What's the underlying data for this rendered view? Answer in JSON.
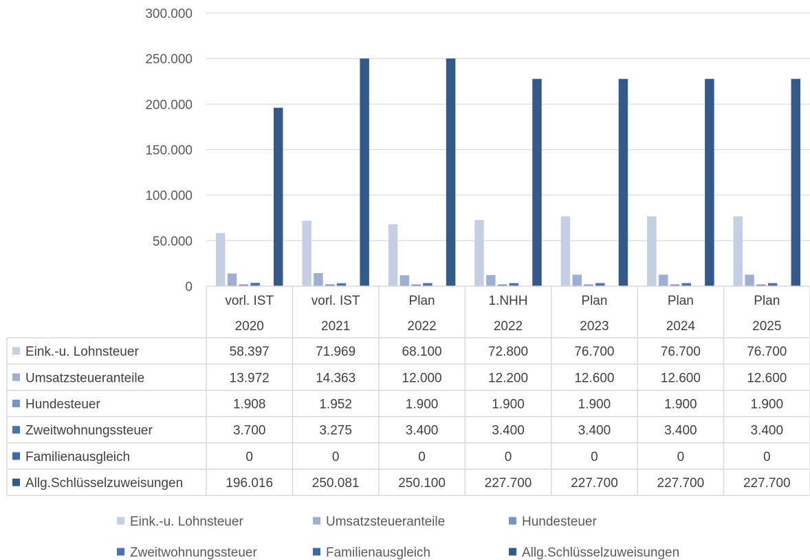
{
  "chart_data": {
    "type": "bar",
    "categories": [
      [
        "vorl. IST",
        "2020"
      ],
      [
        "vorl. IST",
        "2021"
      ],
      [
        "Plan",
        "2022"
      ],
      [
        "1.NHH",
        "2022"
      ],
      [
        "Plan",
        "2023"
      ],
      [
        "Plan",
        "2024"
      ],
      [
        "Plan",
        "2025"
      ]
    ],
    "series": [
      {
        "name": "Eink.-u. Lohnsteuer",
        "color": "#c5cfe3",
        "values": [
          58397,
          71969,
          68100,
          72800,
          76700,
          76700,
          76700
        ],
        "labels": [
          "58.397",
          "71.969",
          "68.100",
          "72.800",
          "76.700",
          "76.700",
          "76.700"
        ]
      },
      {
        "name": "Umsatzsteueranteile",
        "color": "#9eafd2",
        "values": [
          13972,
          14363,
          12000,
          12200,
          12600,
          12600,
          12600
        ],
        "labels": [
          "13.972",
          "14.363",
          "12.000",
          "12.200",
          "12.600",
          "12.600",
          "12.600"
        ]
      },
      {
        "name": "Hundesteuer",
        "color": "#7a93c5",
        "values": [
          1908,
          1952,
          1900,
          1900,
          1900,
          1900,
          1900
        ],
        "labels": [
          "1.908",
          "1.952",
          "1.900",
          "1.900",
          "1.900",
          "1.900",
          "1.900"
        ]
      },
      {
        "name": "Zweitwohnungssteuer",
        "color": "#4e72b0",
        "values": [
          3700,
          3275,
          3400,
          3400,
          3400,
          3400,
          3400
        ],
        "labels": [
          "3.700",
          "3.275",
          "3.400",
          "3.400",
          "3.400",
          "3.400",
          "3.400"
        ]
      },
      {
        "name": "Familienausgleich",
        "color": "#3e6aa3",
        "values": [
          0,
          0,
          0,
          0,
          0,
          0,
          0
        ],
        "labels": [
          "0",
          "0",
          "0",
          "0",
          "0",
          "0",
          "0"
        ]
      },
      {
        "name": "Allg.Schlüsselzuweisungen",
        "color": "#345a89",
        "values": [
          196016,
          250081,
          250100,
          227700,
          227700,
          227700,
          227700
        ],
        "labels": [
          "196.016",
          "250.081",
          "250.100",
          "227.700",
          "227.700",
          "227.700",
          "227.700"
        ]
      }
    ],
    "ylim": [
      0,
      300000
    ],
    "yticks": [
      0,
      50000,
      100000,
      150000,
      200000,
      250000,
      300000
    ],
    "ytick_labels": [
      "0",
      "50.000",
      "100.000",
      "150.000",
      "200.000",
      "250.000",
      "300.000"
    ],
    "grid": true,
    "legend_position": "bottom",
    "data_table": true,
    "title": "",
    "xlabel": "",
    "ylabel": ""
  }
}
